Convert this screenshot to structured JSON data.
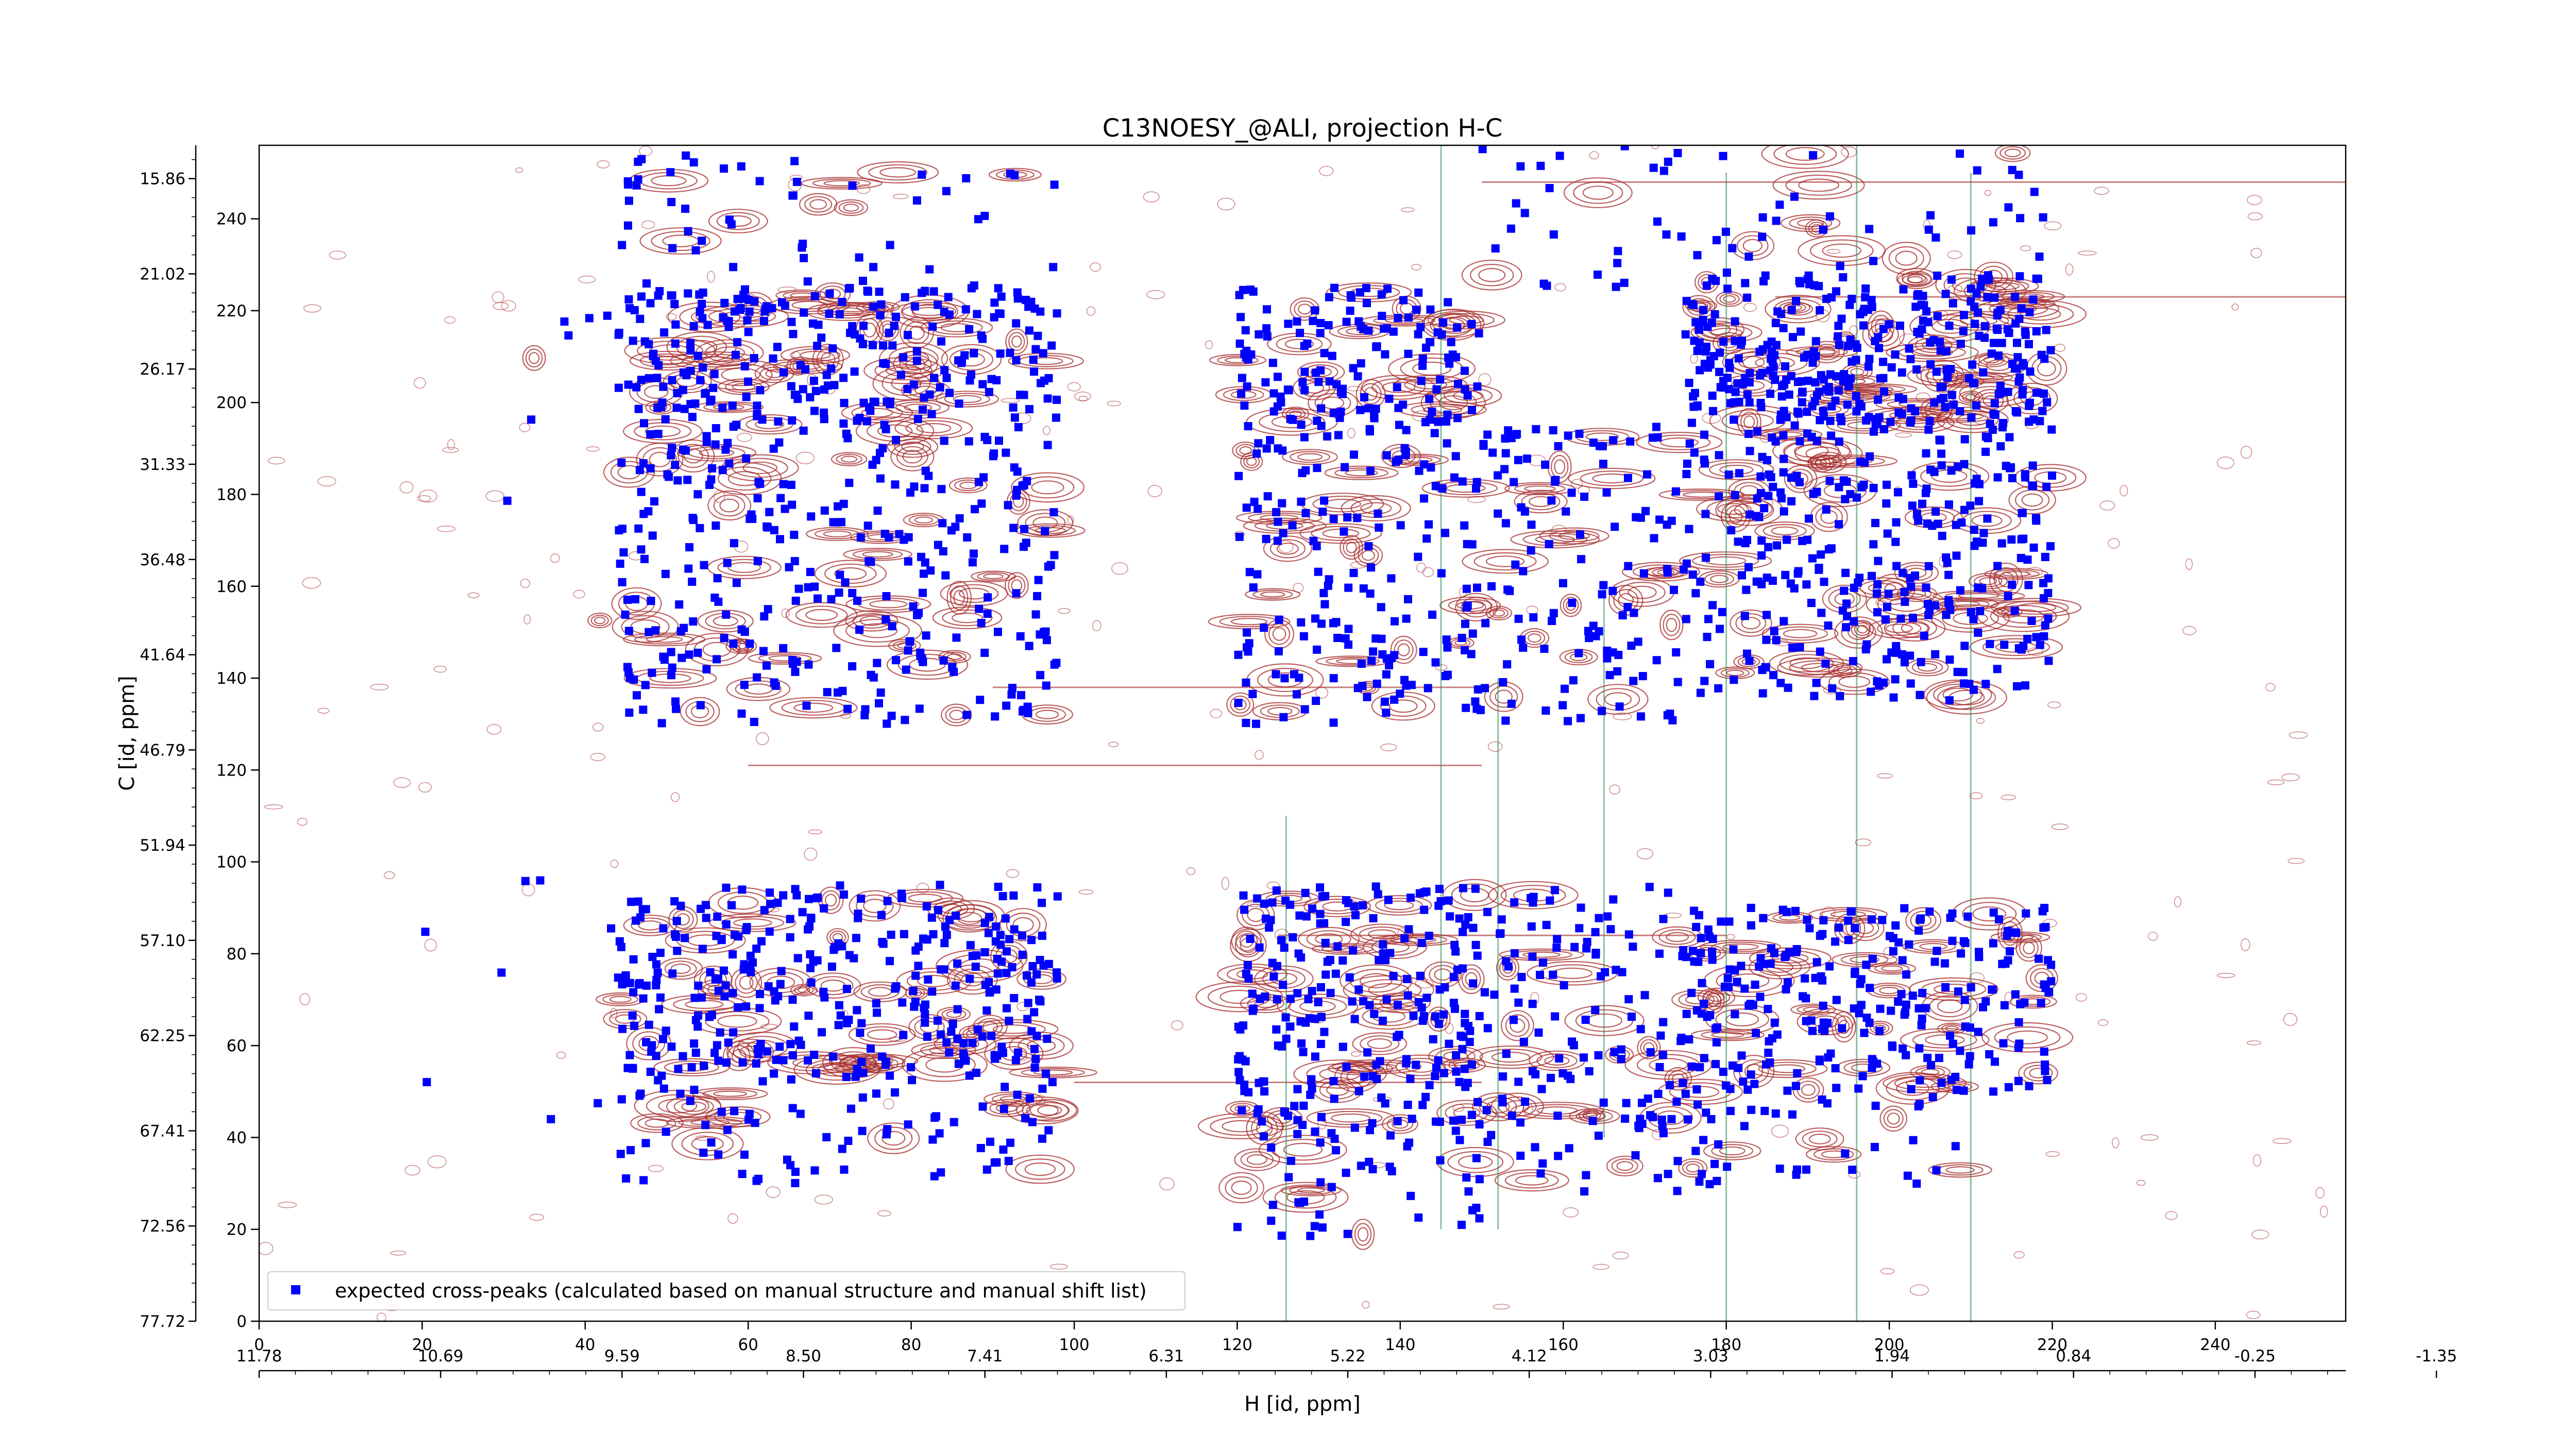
{
  "chart_data": {
    "type": "scatter",
    "title": "C13NOESY_@ALI, projection H-C",
    "xlabel": "H [id, ppm]",
    "ylabel": "C [id, ppm]",
    "xlim": [
      0,
      256
    ],
    "ylim": [
      0,
      256
    ],
    "bottom_ticks": {
      "values": [
        0,
        20,
        40,
        60,
        80,
        100,
        120,
        140,
        160,
        180,
        200,
        220,
        240
      ],
      "labels": [
        "0",
        "20",
        "40",
        "60",
        "80",
        "100",
        "120",
        "140",
        "160",
        "180",
        "200",
        "220",
        "240"
      ]
    },
    "ppm_ticks_h": {
      "labels": [
        "11.78",
        "10.69",
        "9.59",
        "8.50",
        "7.41",
        "6.31",
        "5.22",
        "4.12",
        "3.03",
        "1.94",
        "0.84",
        "-0.25",
        "-1.35"
      ]
    },
    "left_ticks": {
      "values": [
        0,
        20,
        40,
        60,
        80,
        100,
        120,
        140,
        160,
        180,
        200,
        220,
        240
      ],
      "labels": [
        "0",
        "20",
        "40",
        "60",
        "80",
        "100",
        "120",
        "140",
        "160",
        "180",
        "200",
        "220",
        "240"
      ]
    },
    "ppm_ticks_c": {
      "labels": [
        "77.72",
        "72.56",
        "67.41",
        "62.25",
        "57.10",
        "51.94",
        "46.79",
        "41.64",
        "36.48",
        "31.33",
        "26.17",
        "21.02",
        "15.86"
      ]
    },
    "legend": {
      "position": "lower-left",
      "entries": [
        "expected cross-peaks (calculated based on manual structure and manual shift list)"
      ]
    },
    "colors": {
      "peaks": "#0000ff",
      "positive_contour": "#a52a2a",
      "negative_contour": "#2e8b57"
    },
    "series": [
      {
        "name": "expected cross-peaks (calculated based on manual structure and manual shift list)",
        "regions": [
          {
            "x": [
              44,
              98
            ],
            "y": [
              195,
              225
            ],
            "n": 260
          },
          {
            "x": [
              44,
              98
            ],
            "y": [
              130,
              195
            ],
            "n": 300
          },
          {
            "x": [
              44,
              98
            ],
            "y": [
              55,
              95
            ],
            "n": 320
          },
          {
            "x": [
              44,
              98
            ],
            "y": [
              30,
              55
            ],
            "n": 90
          },
          {
            "x": [
              120,
              150
            ],
            "y": [
              195,
              225
            ],
            "n": 140
          },
          {
            "x": [
              120,
              150
            ],
            "y": [
              130,
              195
            ],
            "n": 170
          },
          {
            "x": [
              120,
              150
            ],
            "y": [
              40,
              95
            ],
            "n": 240
          },
          {
            "x": [
              150,
              175
            ],
            "y": [
              130,
              195
            ],
            "n": 120
          },
          {
            "x": [
              150,
              175
            ],
            "y": [
              40,
              95
            ],
            "n": 110
          },
          {
            "x": [
              175,
              220
            ],
            "y": [
              195,
              228
            ],
            "n": 340
          },
          {
            "x": [
              175,
              220
            ],
            "y": [
              135,
              195
            ],
            "n": 330
          },
          {
            "x": [
              175,
              220
            ],
            "y": [
              50,
              90
            ],
            "n": 260
          },
          {
            "x": [
              150,
              220
            ],
            "y": [
              225,
              256
            ],
            "n": 60
          },
          {
            "x": [
              44,
              98
            ],
            "y": [
              225,
              256
            ],
            "n": 50
          },
          {
            "x": [
              120,
              150
            ],
            "y": [
              18,
              40
            ],
            "n": 40
          },
          {
            "x": [
              150,
              210
            ],
            "y": [
              28,
              50
            ],
            "n": 60
          },
          {
            "x": [
              20,
              44
            ],
            "y": [
              40,
              220
            ],
            "n": 14
          }
        ]
      }
    ]
  }
}
